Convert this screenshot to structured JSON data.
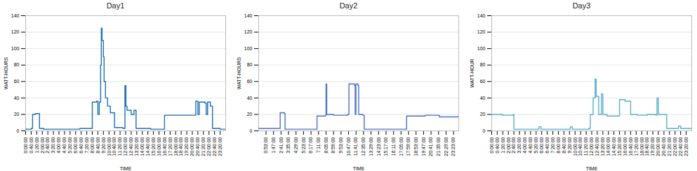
{
  "chart_data": [
    {
      "type": "line",
      "title": "Day1",
      "xlabel": "TIME",
      "ylabel": "WATT-HOURS",
      "color": "#1f6fb4",
      "grid": true,
      "line_style": "step",
      "x": [
        0,
        40,
        50,
        70,
        100,
        130,
        300,
        390,
        470,
        480,
        510,
        520,
        530,
        540,
        545,
        550,
        560,
        565,
        575,
        590,
        610,
        640,
        700,
        715,
        722,
        730,
        760,
        780,
        795,
        900,
        990,
        1000,
        1100,
        1210,
        1225,
        1240,
        1250,
        1290,
        1300,
        1310,
        1330,
        1345,
        1400,
        1439
      ],
      "values": [
        2,
        3,
        20,
        21,
        3,
        2,
        2,
        3,
        3,
        35,
        36,
        20,
        35,
        80,
        125,
        110,
        90,
        60,
        40,
        30,
        22,
        4,
        3,
        55,
        30,
        25,
        20,
        25,
        3,
        2,
        2,
        19,
        19,
        19,
        36,
        20,
        35,
        34,
        20,
        35,
        30,
        3,
        2,
        2
      ],
      "xlim": [
        0,
        1440
      ],
      "xticks": [
        {
          "value": 0,
          "label": "0:00:00"
        },
        {
          "value": 40,
          "label": "0:40:00"
        },
        {
          "value": 80,
          "label": "1:20:00"
        },
        {
          "value": 120,
          "label": "2:00:00"
        },
        {
          "value": 160,
          "label": "2:40:00"
        },
        {
          "value": 200,
          "label": "3:20:00"
        },
        {
          "value": 240,
          "label": "4:00:00"
        },
        {
          "value": 280,
          "label": "4:40:00"
        },
        {
          "value": 320,
          "label": "5:20:00"
        },
        {
          "value": 360,
          "label": "6:00:00"
        },
        {
          "value": 400,
          "label": "6:40:00"
        },
        {
          "value": 440,
          "label": "7:20:00"
        },
        {
          "value": 480,
          "label": "8:00:00"
        },
        {
          "value": 520,
          "label": "8:40:00"
        },
        {
          "value": 560,
          "label": "9:20:00"
        },
        {
          "value": 600,
          "label": "10:00:00"
        },
        {
          "value": 640,
          "label": "10:40:00"
        },
        {
          "value": 680,
          "label": "11:20:00"
        },
        {
          "value": 720,
          "label": "12:00:00"
        },
        {
          "value": 760,
          "label": "12:40:00"
        },
        {
          "value": 800,
          "label": "13:20:00"
        },
        {
          "value": 840,
          "label": "14:00:00"
        },
        {
          "value": 880,
          "label": "14:40:00"
        },
        {
          "value": 920,
          "label": "15:20:00"
        },
        {
          "value": 960,
          "label": "16:00:00"
        },
        {
          "value": 1000,
          "label": "16:40:00"
        },
        {
          "value": 1040,
          "label": "17:20:00"
        },
        {
          "value": 1080,
          "label": "18:00:00"
        },
        {
          "value": 1120,
          "label": "18:40:00"
        },
        {
          "value": 1160,
          "label": "19:20:00"
        },
        {
          "value": 1200,
          "label": "20:00:00"
        },
        {
          "value": 1240,
          "label": "20:40:00"
        },
        {
          "value": 1280,
          "label": "21:20:00"
        },
        {
          "value": 1320,
          "label": "22:00:00"
        },
        {
          "value": 1360,
          "label": "22:40:00"
        },
        {
          "value": 1400,
          "label": "23:20:00"
        }
      ],
      "ylim": [
        0,
        140
      ],
      "yticks": [
        0,
        20,
        40,
        60,
        80,
        100,
        120,
        140
      ]
    },
    {
      "type": "line",
      "title": "Day2",
      "xlabel": "TIME",
      "ylabel": "WATT-HOURS",
      "color": "#4a72c4",
      "grid": true,
      "line_style": "step",
      "x": [
        0,
        140,
        155,
        185,
        190,
        410,
        420,
        480,
        485,
        490,
        540,
        640,
        650,
        690,
        695,
        700,
        715,
        720,
        750,
        760,
        900,
        1060,
        1065,
        1200,
        1300,
        1439
      ],
      "values": [
        3,
        3,
        22,
        21,
        2,
        2,
        18,
        19,
        57,
        20,
        19,
        20,
        57,
        55,
        20,
        57,
        55,
        20,
        19,
        2,
        2,
        2,
        18,
        19,
        17,
        18
      ],
      "xlim": [
        0,
        1440
      ],
      "xticks": [
        {
          "value": 53,
          "label": "0:53:00"
        },
        {
          "value": 107,
          "label": "1:47:00"
        },
        {
          "value": 161,
          "label": "2:41:00"
        },
        {
          "value": 215,
          "label": "3:35:00"
        },
        {
          "value": 269,
          "label": "4:29:00"
        },
        {
          "value": 323,
          "label": "5:23:00"
        },
        {
          "value": 377,
          "label": "6:17:00"
        },
        {
          "value": 431,
          "label": "7:11:00"
        },
        {
          "value": 485,
          "label": "8:05:00"
        },
        {
          "value": 539,
          "label": "8:59:00"
        },
        {
          "value": 593,
          "label": "9:53:00"
        },
        {
          "value": 647,
          "label": "10:47:00"
        },
        {
          "value": 701,
          "label": "11:41:00"
        },
        {
          "value": 755,
          "label": "12:35:00"
        },
        {
          "value": 809,
          "label": "13:29:00"
        },
        {
          "value": 863,
          "label": "14:23:00"
        },
        {
          "value": 917,
          "label": "15:17:00"
        },
        {
          "value": 971,
          "label": "16:11:00"
        },
        {
          "value": 1025,
          "label": "17:05:00"
        },
        {
          "value": 1079,
          "label": "17:59:00"
        },
        {
          "value": 1133,
          "label": "18:53:00"
        },
        {
          "value": 1187,
          "label": "19:47:00"
        },
        {
          "value": 1241,
          "label": "20:41:00"
        },
        {
          "value": 1295,
          "label": "21:35:00"
        },
        {
          "value": 1349,
          "label": "22:29:00"
        },
        {
          "value": 1403,
          "label": "23:23:00"
        }
      ],
      "ylim": [
        0,
        140
      ],
      "yticks": [
        0,
        20,
        40,
        60,
        80,
        100,
        120,
        140
      ]
    },
    {
      "type": "line",
      "title": "Day3",
      "xlabel": "TIME",
      "ylabel": "WATT-HOUR",
      "color": "#5ab0c8",
      "grid": true,
      "line_style": "step",
      "x": [
        0,
        80,
        155,
        160,
        330,
        340,
        355,
        560,
        565,
        580,
        700,
        710,
        730,
        745,
        752,
        770,
        790,
        800,
        830,
        920,
        960,
        1000,
        1050,
        1120,
        1180,
        1190,
        1200,
        1255,
        1260,
        1340,
        1345,
        1360,
        1439
      ],
      "values": [
        20,
        19,
        20,
        2,
        2,
        5,
        2,
        2,
        5,
        2,
        3,
        20,
        40,
        63,
        42,
        20,
        45,
        20,
        18,
        38,
        36,
        20,
        19,
        20,
        19,
        40,
        20,
        20,
        3,
        3,
        6,
        3,
        3
      ],
      "xlim": [
        0,
        1440
      ],
      "xticks": [
        {
          "value": 0,
          "label": "0:00:00"
        },
        {
          "value": 40,
          "label": "0:40:00"
        },
        {
          "value": 80,
          "label": "1:20:00"
        },
        {
          "value": 120,
          "label": "2:00:00"
        },
        {
          "value": 160,
          "label": "2:40:00"
        },
        {
          "value": 200,
          "label": "3:20:00"
        },
        {
          "value": 240,
          "label": "4:00:00"
        },
        {
          "value": 280,
          "label": "4:40:00"
        },
        {
          "value": 320,
          "label": "5:20:00"
        },
        {
          "value": 360,
          "label": "6:00:00"
        },
        {
          "value": 400,
          "label": "6:40:00"
        },
        {
          "value": 440,
          "label": "7:20:00"
        },
        {
          "value": 480,
          "label": "8:00:00"
        },
        {
          "value": 520,
          "label": "8:40:00"
        },
        {
          "value": 560,
          "label": "9:20:00"
        },
        {
          "value": 600,
          "label": "10:00:00"
        },
        {
          "value": 640,
          "label": "10:40:00"
        },
        {
          "value": 680,
          "label": "11:20:00"
        },
        {
          "value": 720,
          "label": "12:00:00"
        },
        {
          "value": 760,
          "label": "12:40:00"
        },
        {
          "value": 800,
          "label": "13:20:00"
        },
        {
          "value": 840,
          "label": "14:00:00"
        },
        {
          "value": 880,
          "label": "14:40:00"
        },
        {
          "value": 920,
          "label": "15:20:00"
        },
        {
          "value": 960,
          "label": "16:00:00"
        },
        {
          "value": 1000,
          "label": "16:40:00"
        },
        {
          "value": 1040,
          "label": "17:20:00"
        },
        {
          "value": 1080,
          "label": "18:00:00"
        },
        {
          "value": 1120,
          "label": "18:40:00"
        },
        {
          "value": 1160,
          "label": "19:20:00"
        },
        {
          "value": 1200,
          "label": "20:00:00"
        },
        {
          "value": 1240,
          "label": "20:40:00"
        },
        {
          "value": 1280,
          "label": "21:20:00"
        },
        {
          "value": 1320,
          "label": "22:00:00"
        },
        {
          "value": 1360,
          "label": "22:40:00"
        },
        {
          "value": 1400,
          "label": "23:20:00"
        }
      ],
      "ylim": [
        0,
        140
      ],
      "yticks": [
        0,
        20,
        40,
        60,
        80,
        100,
        120,
        140
      ]
    }
  ]
}
